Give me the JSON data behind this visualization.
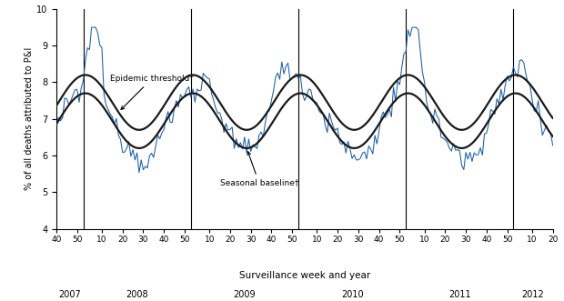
{
  "xlabel": "Surveillance week and year",
  "ylabel": "% of all deaths attributed to P&I",
  "ylim": [
    4,
    10
  ],
  "yticks": [
    4,
    5,
    6,
    7,
    8,
    9,
    10
  ],
  "background_color": "#ffffff",
  "line_color": "#1a5fa8",
  "baseline_color": "#1a1a1a",
  "threshold_color": "#1a1a1a",
  "annotation_epidemic": "Epidemic threshold*",
  "annotation_baseline": "Seasonal baseline†",
  "years": [
    "2007",
    "2008",
    "2009",
    "2010",
    "2011",
    "2012"
  ]
}
